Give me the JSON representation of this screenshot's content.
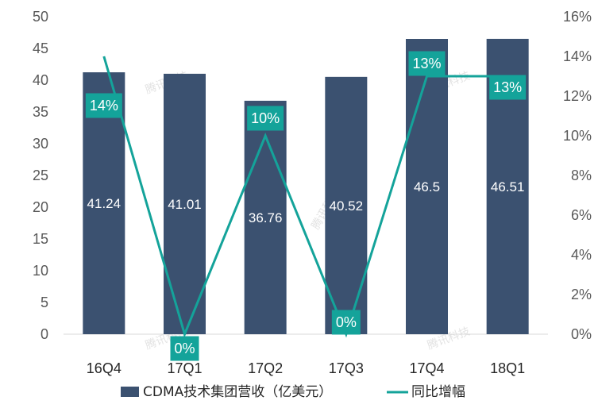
{
  "chart_data": {
    "type": "bar",
    "categories": [
      "16Q4",
      "17Q1",
      "17Q2",
      "17Q3",
      "17Q4",
      "18Q1"
    ],
    "series": [
      {
        "name": "CDMA技术集团营收（亿美元）",
        "type": "bar",
        "axis": "left",
        "values": [
          41.24,
          41.01,
          36.76,
          40.52,
          46.5,
          46.51
        ],
        "labels": [
          "41.24",
          "41.01",
          "36.76",
          "40.52",
          "46.5",
          "46.51"
        ],
        "color": "#3b5170"
      },
      {
        "name": "同比增幅",
        "type": "line",
        "axis": "right",
        "values": [
          14,
          0,
          10,
          0,
          13,
          13
        ],
        "labels": [
          "14%",
          "0%",
          "10%",
          "0%",
          "13%",
          "13%"
        ],
        "color": "#14a39a"
      }
    ],
    "y_left": {
      "ticks": [
        "0",
        "5",
        "10",
        "15",
        "20",
        "25",
        "30",
        "35",
        "40",
        "45",
        "50"
      ],
      "ylim": [
        0,
        50
      ]
    },
    "y_right": {
      "ticks": [
        "0%",
        "2%",
        "4%",
        "6%",
        "8%",
        "10%",
        "12%",
        "14%",
        "16%"
      ],
      "ylim": [
        0,
        16
      ]
    },
    "legend_position": "bottom",
    "grid": false,
    "watermark": "腾讯科技"
  }
}
